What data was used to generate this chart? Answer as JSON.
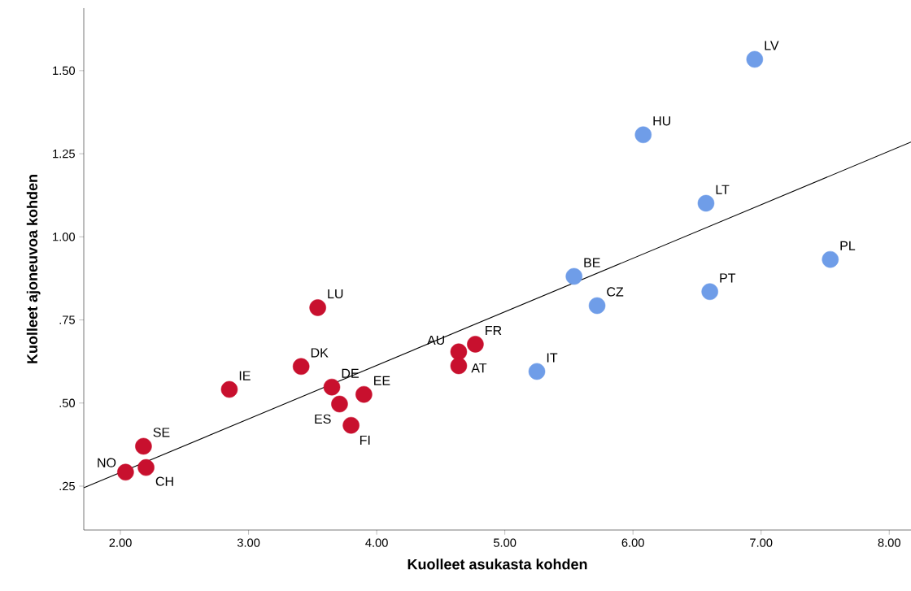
{
  "chart_data": {
    "type": "scatter",
    "xlabel": "Kuolleet asukasta kohden",
    "ylabel": "Kuolleet ajoneuvoa kohden",
    "xlim": [
      1.714,
      8.17
    ],
    "ylim": [
      0.118,
      1.688
    ],
    "xticks": [
      {
        "value": 2,
        "label": "2.00"
      },
      {
        "value": 3,
        "label": "3.00"
      },
      {
        "value": 4,
        "label": "4.00"
      },
      {
        "value": 5,
        "label": "5.00"
      },
      {
        "value": 6,
        "label": "6.00"
      },
      {
        "value": 7,
        "label": "7.00"
      },
      {
        "value": 8,
        "label": "8.00"
      }
    ],
    "yticks": [
      {
        "value": 0.25,
        "label": ".25"
      },
      {
        "value": 0.5,
        "label": ".50"
      },
      {
        "value": 0.75,
        "label": ".75"
      },
      {
        "value": 1.0,
        "label": "1.00"
      },
      {
        "value": 1.25,
        "label": "1.25"
      },
      {
        "value": 1.5,
        "label": "1.50"
      }
    ],
    "grid": false,
    "series": [
      {
        "marker": "circle",
        "color": "#6f9de8",
        "x": [
          6.95,
          6.08,
          6.57,
          7.54,
          5.54,
          6.6,
          5.72,
          5.25
        ],
        "values": [
          1.534,
          1.307,
          1.101,
          0.932,
          0.881,
          0.835,
          0.793,
          0.595
        ]
      },
      {
        "marker": "circle",
        "color": "#c8102e",
        "x": [
          3.54,
          4.77,
          4.64,
          4.64,
          3.41,
          2.85,
          3.65,
          3.9,
          3.71,
          3.8,
          2.18,
          2.2,
          2.04
        ],
        "values": [
          0.787,
          0.677,
          0.654,
          0.612,
          0.61,
          0.541,
          0.548,
          0.526,
          0.497,
          0.433,
          0.37,
          0.306,
          0.292
        ]
      },
      {
        "type": "line",
        "marker": "none",
        "color": "#000000",
        "x": [
          1.714,
          8.17
        ],
        "values": [
          0.245,
          1.285
        ]
      }
    ],
    "annotations": [
      {
        "text": "LV",
        "x": 6.95,
        "y": 1.534
      },
      {
        "text": "HU",
        "x": 6.08,
        "y": 1.307
      },
      {
        "text": "LT",
        "x": 6.57,
        "y": 1.101
      },
      {
        "text": "PL",
        "x": 7.54,
        "y": 0.932
      },
      {
        "text": "BE",
        "x": 5.54,
        "y": 0.881
      },
      {
        "text": "PT",
        "x": 6.6,
        "y": 0.835
      },
      {
        "text": "CZ",
        "x": 5.72,
        "y": 0.793
      },
      {
        "text": "IT",
        "x": 5.25,
        "y": 0.595
      },
      {
        "text": "LU",
        "x": 3.54,
        "y": 0.787
      },
      {
        "text": "FR",
        "x": 4.77,
        "y": 0.677
      },
      {
        "text": "AU",
        "x": 4.64,
        "y": 0.654
      },
      {
        "text": "AT",
        "x": 4.64,
        "y": 0.612
      },
      {
        "text": "DK",
        "x": 3.41,
        "y": 0.61
      },
      {
        "text": "IE",
        "x": 2.85,
        "y": 0.541
      },
      {
        "text": "DE",
        "x": 3.65,
        "y": 0.548
      },
      {
        "text": "EE",
        "x": 3.9,
        "y": 0.526
      },
      {
        "text": "ES",
        "x": 3.71,
        "y": 0.497
      },
      {
        "text": "FI",
        "x": 3.8,
        "y": 0.433
      },
      {
        "text": "SE",
        "x": 2.18,
        "y": 0.37
      },
      {
        "text": "CH",
        "x": 2.2,
        "y": 0.306
      },
      {
        "text": "NO",
        "x": 2.04,
        "y": 0.292
      }
    ]
  }
}
